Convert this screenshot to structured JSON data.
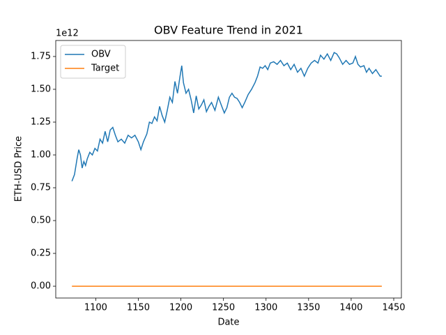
{
  "chart_data": {
    "type": "line",
    "title": "OBV Feature Trend in 2021",
    "x_label": "Date",
    "y_label": "ETH-USD Price",
    "y_offset_label": "1e12",
    "xlim": [
      1053,
      1459
    ],
    "ylim": [
      -0.09,
      1.872
    ],
    "xticks": [
      1100,
      1150,
      1200,
      1250,
      1300,
      1350,
      1400,
      1450
    ],
    "yticks": [
      {
        "value": 0,
        "label": "0.00"
      },
      0.25,
      {
        "value": 0.5,
        "label": "0.50"
      },
      0.75,
      {
        "value": 1,
        "label": "1.00"
      },
      1.25,
      {
        "value": 1.5,
        "label": "1.50"
      },
      1.75
    ],
    "legend": "upper left",
    "series": [
      {
        "name": "OBV",
        "color": "#1f77b4",
        "x": [
          1072,
          1075,
          1078,
          1080,
          1082,
          1084,
          1086,
          1088,
          1090,
          1093,
          1096,
          1099,
          1102,
          1105,
          1108,
          1111,
          1114,
          1117,
          1120,
          1123,
          1126,
          1130,
          1134,
          1138,
          1142,
          1146,
          1150,
          1153,
          1156,
          1160,
          1163,
          1166,
          1169,
          1172,
          1175,
          1178,
          1181,
          1184,
          1187,
          1190,
          1193,
          1196,
          1199,
          1201,
          1203,
          1206,
          1209,
          1212,
          1215,
          1218,
          1221,
          1224,
          1227,
          1230,
          1233,
          1236,
          1240,
          1244,
          1248,
          1251,
          1254,
          1257,
          1260,
          1263,
          1266,
          1269,
          1272,
          1275,
          1279,
          1283,
          1287,
          1290,
          1293,
          1296,
          1299,
          1302,
          1305,
          1309,
          1313,
          1317,
          1321,
          1325,
          1329,
          1333,
          1337,
          1341,
          1345,
          1349,
          1353,
          1357,
          1361,
          1364,
          1368,
          1372,
          1376,
          1380,
          1383,
          1386,
          1390,
          1394,
          1398,
          1402,
          1405,
          1408,
          1411,
          1415,
          1418,
          1421,
          1425,
          1429,
          1432,
          1434,
          1436
        ],
        "values": [
          0.8,
          0.85,
          0.97,
          1.04,
          1.0,
          0.9,
          0.95,
          0.92,
          0.97,
          1.02,
          1.0,
          1.05,
          1.03,
          1.12,
          1.09,
          1.18,
          1.1,
          1.19,
          1.21,
          1.15,
          1.1,
          1.12,
          1.09,
          1.15,
          1.13,
          1.15,
          1.1,
          1.04,
          1.1,
          1.16,
          1.25,
          1.24,
          1.29,
          1.26,
          1.37,
          1.3,
          1.25,
          1.34,
          1.44,
          1.4,
          1.56,
          1.47,
          1.6,
          1.68,
          1.55,
          1.47,
          1.5,
          1.42,
          1.32,
          1.45,
          1.35,
          1.38,
          1.42,
          1.33,
          1.37,
          1.4,
          1.34,
          1.44,
          1.37,
          1.32,
          1.36,
          1.44,
          1.47,
          1.44,
          1.43,
          1.4,
          1.36,
          1.4,
          1.46,
          1.5,
          1.55,
          1.6,
          1.67,
          1.66,
          1.68,
          1.65,
          1.7,
          1.71,
          1.69,
          1.72,
          1.68,
          1.7,
          1.65,
          1.69,
          1.63,
          1.66,
          1.6,
          1.66,
          1.7,
          1.72,
          1.7,
          1.76,
          1.73,
          1.77,
          1.72,
          1.78,
          1.77,
          1.74,
          1.69,
          1.72,
          1.69,
          1.7,
          1.75,
          1.69,
          1.67,
          1.68,
          1.63,
          1.66,
          1.62,
          1.65,
          1.62,
          1.6,
          1.6
        ]
      },
      {
        "name": "Target",
        "color": "#ff7f0e",
        "x": [
          1072,
          1436
        ],
        "values": [
          0,
          0
        ]
      }
    ]
  }
}
